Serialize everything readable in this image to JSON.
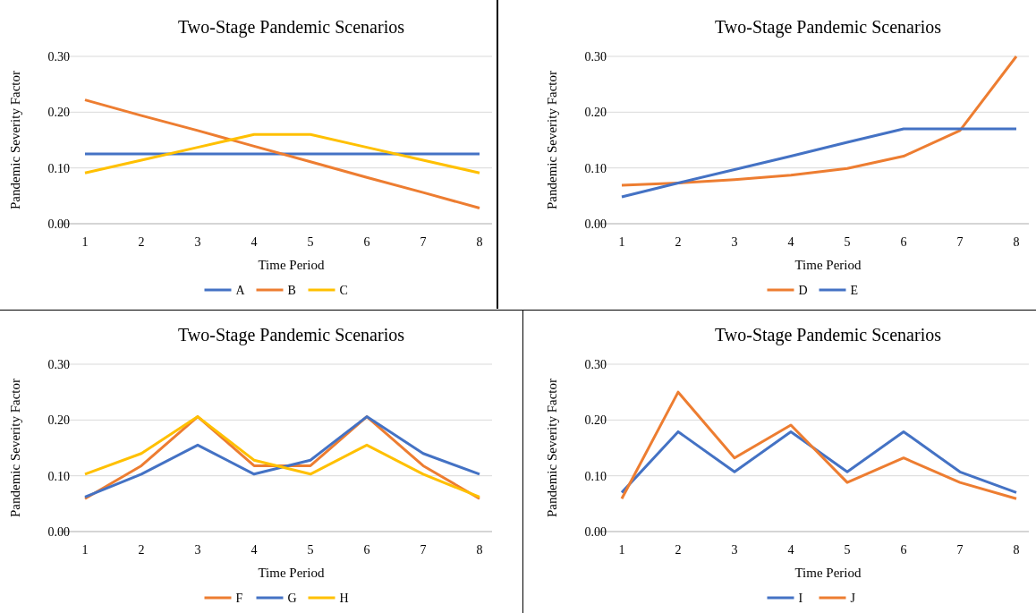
{
  "chart_data": [
    {
      "type": "line",
      "title": "Two-Stage Pandemic Scenarios",
      "xlabel": "Time Period",
      "ylabel": "Pandemic Severity Factor",
      "categories": [
        "1",
        "2",
        "3",
        "4",
        "5",
        "6",
        "7",
        "8"
      ],
      "ylim": [
        0,
        0.3
      ],
      "yticks": [
        {
          "value": 0,
          "label": "0.00"
        },
        {
          "value": 0.1,
          "label": "0.10"
        },
        {
          "value": 0.2,
          "label": "0.20"
        },
        {
          "value": 0.3,
          "label": "0.30"
        }
      ],
      "grid": "y",
      "legend": "bottom",
      "series": [
        {
          "name": "A",
          "color": "#4472c4",
          "values": [
            0.125,
            0.125,
            0.125,
            0.125,
            0.125,
            0.125,
            0.125,
            0.125
          ]
        },
        {
          "name": "B",
          "color": "#ed7d31",
          "values": [
            0.222,
            0.194,
            0.167,
            0.139,
            0.111,
            0.083,
            0.056,
            0.028
          ]
        },
        {
          "name": "C",
          "color": "#ffc000",
          "values": [
            0.091,
            0.114,
            0.137,
            0.16,
            0.16,
            0.137,
            0.114,
            0.091
          ]
        }
      ]
    },
    {
      "type": "line",
      "title": "Two-Stage Pandemic Scenarios",
      "xlabel": "Time Period",
      "ylabel": "Pandemic Severity Factor",
      "categories": [
        "1",
        "2",
        "3",
        "4",
        "5",
        "6",
        "7",
        "8"
      ],
      "ylim": [
        0,
        0.3
      ],
      "yticks": [
        {
          "value": 0,
          "label": "0.00"
        },
        {
          "value": 0.1,
          "label": "0.10"
        },
        {
          "value": 0.2,
          "label": "0.20"
        },
        {
          "value": 0.3,
          "label": "0.30"
        }
      ],
      "grid": "y",
      "legend": "bottom",
      "series": [
        {
          "name": "D",
          "color": "#ed7d31",
          "values": [
            0.069,
            0.073,
            0.079,
            0.087,
            0.099,
            0.121,
            0.167,
            0.3
          ]
        },
        {
          "name": "E",
          "color": "#4472c4",
          "values": [
            0.048,
            0.073,
            0.097,
            0.121,
            0.146,
            0.17,
            0.17,
            0.17
          ]
        }
      ]
    },
    {
      "type": "line",
      "title": "Two-Stage Pandemic Scenarios",
      "xlabel": "Time Period",
      "ylabel": "Pandemic Severity Factor",
      "categories": [
        "1",
        "2",
        "3",
        "4",
        "5",
        "6",
        "7",
        "8"
      ],
      "ylim": [
        0,
        0.3
      ],
      "yticks": [
        {
          "value": 0,
          "label": "0.00"
        },
        {
          "value": 0.1,
          "label": "0.10"
        },
        {
          "value": 0.2,
          "label": "0.20"
        },
        {
          "value": 0.3,
          "label": "0.30"
        }
      ],
      "grid": "y",
      "legend": "bottom",
      "series": [
        {
          "name": "F",
          "color": "#ed7d31",
          "values": [
            0.059,
            0.118,
            0.206,
            0.118,
            0.118,
            0.206,
            0.118,
            0.059
          ]
        },
        {
          "name": "G",
          "color": "#4472c4",
          "values": [
            0.062,
            0.103,
            0.155,
            0.103,
            0.128,
            0.206,
            0.14,
            0.103
          ]
        },
        {
          "name": "H",
          "color": "#ffc000",
          "values": [
            0.103,
            0.14,
            0.206,
            0.128,
            0.103,
            0.155,
            0.103,
            0.062
          ]
        }
      ]
    },
    {
      "type": "line",
      "title": "Two-Stage Pandemic Scenarios",
      "xlabel": "Time Period",
      "ylabel": "Pandemic Severity Factor",
      "categories": [
        "1",
        "2",
        "3",
        "4",
        "5",
        "6",
        "7",
        "8"
      ],
      "ylim": [
        0,
        0.3
      ],
      "yticks": [
        {
          "value": 0,
          "label": "0.00"
        },
        {
          "value": 0.1,
          "label": "0.10"
        },
        {
          "value": 0.2,
          "label": "0.20"
        },
        {
          "value": 0.3,
          "label": "0.30"
        }
      ],
      "grid": "y",
      "legend": "bottom",
      "series": [
        {
          "name": "I",
          "color": "#4472c4",
          "values": [
            0.07,
            0.179,
            0.107,
            0.179,
            0.107,
            0.179,
            0.107,
            0.07
          ]
        },
        {
          "name": "J",
          "color": "#ed7d31",
          "values": [
            0.059,
            0.25,
            0.132,
            0.191,
            0.088,
            0.132,
            0.088,
            0.059
          ]
        }
      ]
    }
  ]
}
